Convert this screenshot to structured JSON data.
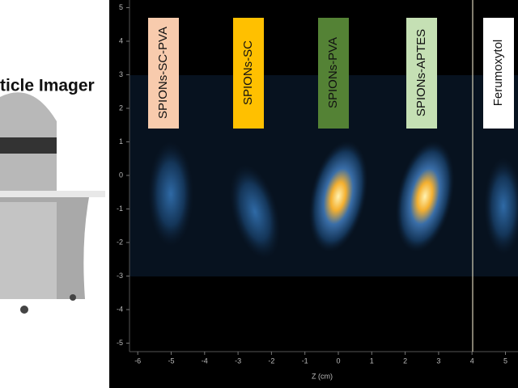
{
  "title": "ticle Imager",
  "image": {
    "xlabel": "Z (cm)",
    "xticks": [
      -6,
      -5,
      -4,
      -3,
      -2,
      -1,
      0,
      1,
      2,
      3,
      4,
      5
    ],
    "yticks": [
      5,
      4,
      3,
      2,
      1,
      0,
      -1,
      -2,
      -3,
      -4,
      -5
    ],
    "samples": [
      {
        "label": "SPIONs-SC-PVA",
        "color": "#f8cbad"
      },
      {
        "label": "SPIONs-SC",
        "color": "#ffc000"
      },
      {
        "label": "SPIONs-PVA",
        "color": "#548235"
      },
      {
        "label": "SPIONs-APTES",
        "color": "#c5e0b4"
      },
      {
        "label": "Ferumoxytol",
        "color": "#ffffff"
      }
    ]
  }
}
